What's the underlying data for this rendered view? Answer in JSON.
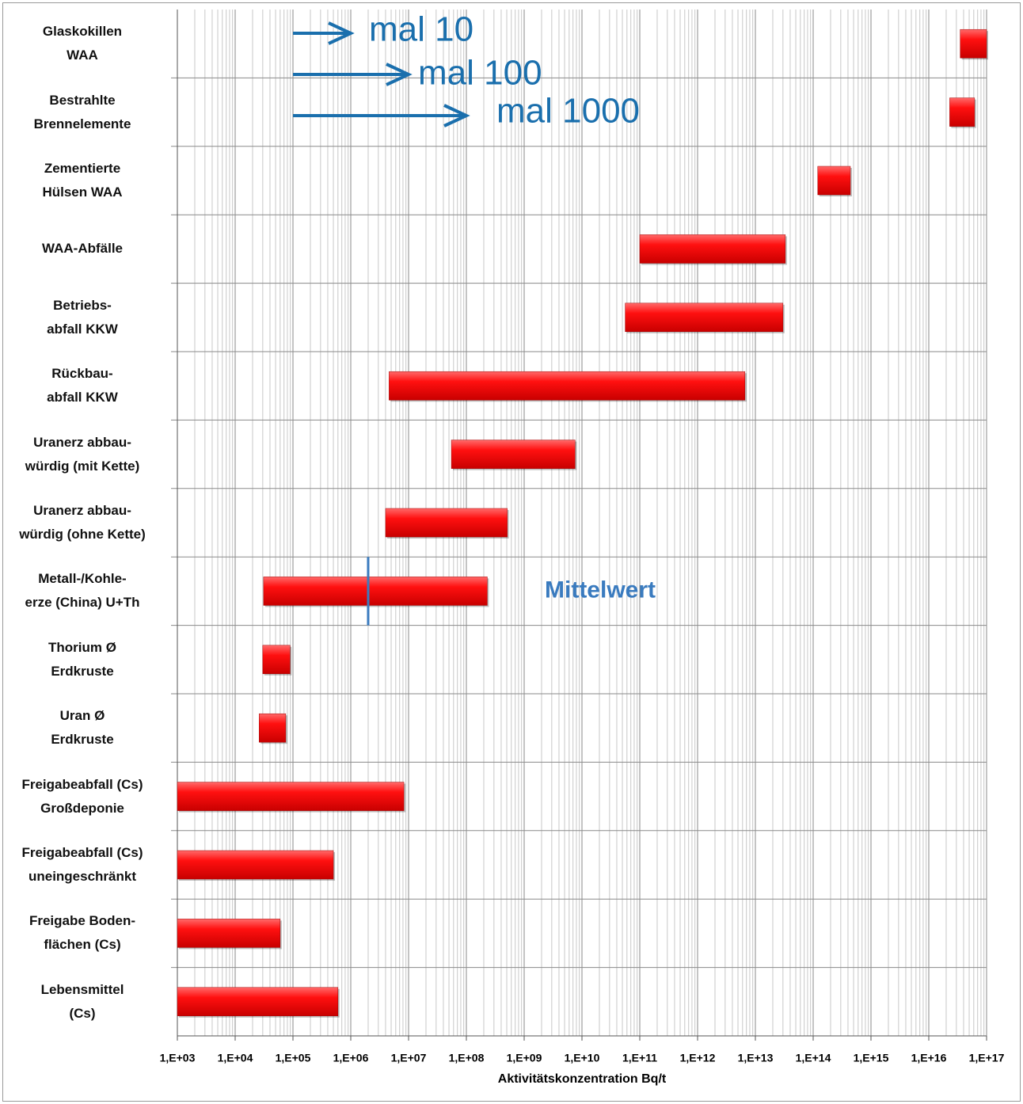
{
  "chart_data": {
    "type": "floating-bar",
    "x_label": "Aktivitätskonzentration Bq/t",
    "xscale": "log",
    "grid": true,
    "color": "#e00000",
    "categories": [
      "Glaskokillen\nWAA",
      "Bestrahlte\nBrennelemente",
      "Zementierte\nHülsen WAA",
      "WAA-Abfälle",
      "Betriebs-\nabfall KKW",
      "Rückbau-\nabfall KKW",
      "Uranerz abbau-\nwürdig (mit Kette)",
      "Uranerz abbau-\nwürdig (ohne Kette)",
      "Metall-/Kohle-\nerze (China) U+Th",
      "Thorium Ø\nErdkruste",
      "Uran Ø\nErdkruste",
      "Freigabeabfall (Cs)\nGroßdeponie",
      "Freigabeabfall (Cs)\nuneingeschränkt",
      "Freigabe Boden-\nflächen (Cs)",
      "Lebensmittel\n(Cs)"
    ],
    "start": [
      3.5e+16,
      2.3e+16,
      120000000000000.0,
      100000000000.0,
      56000000000.0,
      4600000.0,
      55000000.0,
      4000000.0,
      31000.0,
      30000.0,
      26000.0,
      1000,
      1000,
      1000,
      1000
    ],
    "end": [
      1e+17,
      6.2e+16,
      440000000000000.0,
      33000000000000.0,
      30000000000000.0,
      6600000000000.0,
      7600000000.0,
      510000000.0,
      230000000.0,
      89000.0,
      75000.0,
      8300000.0,
      500000.0,
      60000.0,
      600000.0
    ],
    "xlim": [
      1000,
      1e+17
    ],
    "xticks": [
      {
        "value": 1000.0,
        "label": "1,E+03"
      },
      {
        "value": 10000.0,
        "label": "1,E+04"
      },
      {
        "value": 100000.0,
        "label": "1,E+05"
      },
      {
        "value": 1000000.0,
        "label": "1,E+06"
      },
      {
        "value": 10000000.0,
        "label": "1,E+07"
      },
      {
        "value": 100000000.0,
        "label": "1,E+08"
      },
      {
        "value": 1000000000.0,
        "label": "1,E+09"
      },
      {
        "value": 10000000000.0,
        "label": "1,E+10"
      },
      {
        "value": 100000000000.0,
        "label": "1,E+11"
      },
      {
        "value": 1000000000000.0,
        "label": "1,E+12"
      },
      {
        "value": 10000000000000.0,
        "label": "1,E+13"
      },
      {
        "value": 100000000000000.0,
        "label": "1,E+14"
      },
      {
        "value": 1000000000000000.0,
        "label": "1,E+15"
      },
      {
        "value": 1e+16,
        "label": "1,E+16"
      },
      {
        "value": 1e+17,
        "label": "1,E+17"
      }
    ],
    "mean": {
      "label": "Mittelwert",
      "value": 2000000,
      "color": "#3a7bbf"
    },
    "annotations": [
      {
        "text": "mal 10",
        "color": "#1a6fad"
      },
      {
        "text": "mal 100",
        "color": "#1a6fad"
      },
      {
        "text": "mal 1000",
        "color": "#1a6fad"
      }
    ]
  }
}
